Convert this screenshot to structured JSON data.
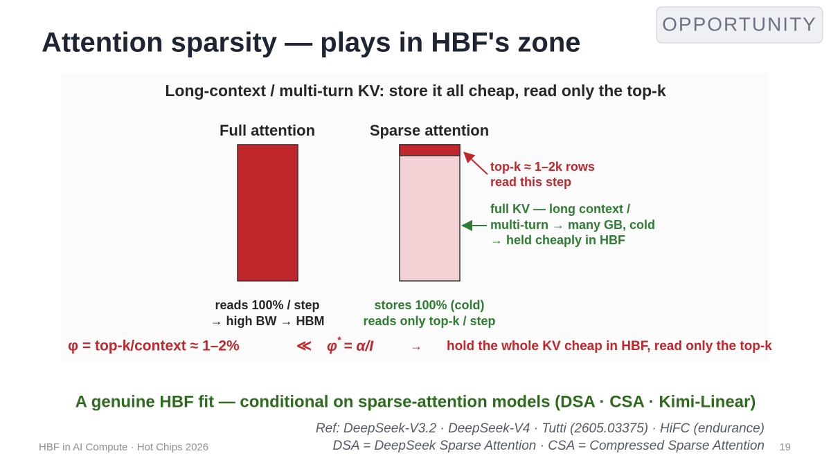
{
  "header": {
    "title": "Attention sparsity — plays in HBF's zone",
    "badge": "OPPORTUNITY"
  },
  "diagram": {
    "heading": "Long-context / multi-turn KV:  store it all cheap, read only the top-k",
    "columns": [
      {
        "title": "Full attention",
        "captions": [
          "reads 100% / step",
          "→ high BW → HBM"
        ]
      },
      {
        "title": "Sparse attention",
        "captions": [
          "stores 100% (cold)",
          "reads only top-k / step"
        ]
      }
    ],
    "annotations": {
      "topk": [
        "top-k ≈ 1–2k rows",
        "read this step"
      ],
      "fullkv": [
        "full KV — long context /",
        "multi-turn → many GB, cold",
        "→ held cheaply in HBF"
      ]
    },
    "formula": {
      "lhs": "φ = top-k/context ≈ 1–2%",
      "op": "≪",
      "phi": "φ",
      "sup": "*",
      "rest": "= α/I",
      "arrow": "→",
      "rhs": "hold the whole KV cheap in HBF, read only the top-k"
    }
  },
  "conclusion": "A genuine HBF fit — conditional on sparse-attention models (DSA · CSA · Kimi-Linear)",
  "references": [
    "Ref: DeepSeek-V3.2 · DeepSeek-V4 · Tutti (2605.03375) · HiFC (endurance)",
    "DSA = DeepSeek Sparse Attention · CSA = Compressed Sparse Attention"
  ],
  "footer": {
    "left": "HBF in AI Compute · Hot Chips 2026",
    "page": 19
  }
}
